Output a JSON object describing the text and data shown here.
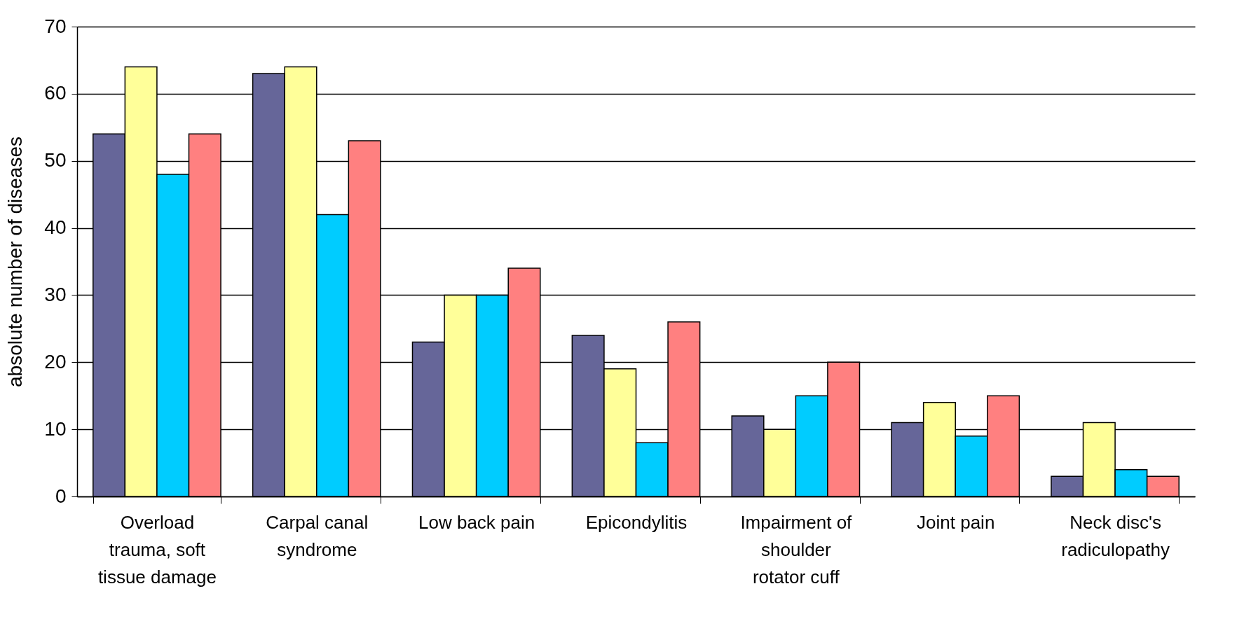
{
  "chart_data": {
    "type": "bar",
    "ylabel": "absolute number of diseases",
    "categories": [
      "Overload trauma, soft tissue damage",
      "Carpal canal syndrome",
      "Low back pain",
      "Epicondylitis",
      "Impairment of shoulder rotator cuff",
      "Joint pain",
      "Neck disc's radiculopathy"
    ],
    "series": [
      {
        "color": "#666699",
        "values": [
          54,
          63,
          23,
          24,
          12,
          11,
          3
        ]
      },
      {
        "color": "#ffff99",
        "values": [
          64,
          64,
          30,
          19,
          10,
          14,
          11
        ]
      },
      {
        "color": "#00ccff",
        "values": [
          48,
          42,
          30,
          8,
          15,
          9,
          4
        ]
      },
      {
        "color": "#ff8080",
        "values": [
          54,
          53,
          34,
          26,
          20,
          15,
          3
        ]
      }
    ],
    "ylim": [
      0,
      70
    ],
    "yticks": [
      0,
      10,
      20,
      30,
      40,
      50,
      60,
      70
    ],
    "grid": "y",
    "legend": false
  }
}
